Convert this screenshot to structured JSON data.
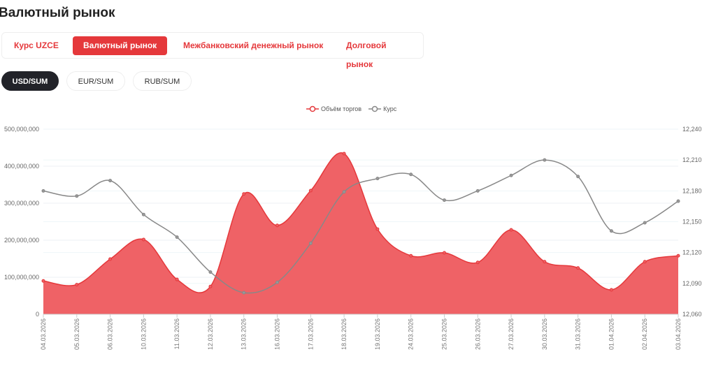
{
  "page_title": "Валютный рынок",
  "tabs": [
    {
      "label": "Курс UZCE",
      "active": false
    },
    {
      "label": "Валютный рынок",
      "active": true
    },
    {
      "label": "Межбанковский денежный рынок",
      "active": false
    },
    {
      "label": "Долговой рынок",
      "active": false
    }
  ],
  "pairs": [
    {
      "label": "USD/SUM",
      "active": true
    },
    {
      "label": "EUR/SUM",
      "active": false
    },
    {
      "label": "RUB/SUM",
      "active": false
    }
  ],
  "chart_data": {
    "type": "area+line",
    "legend_position": "top-center",
    "grid": true,
    "categories": [
      "04.03.2026",
      "05.03.2026",
      "06.03.2026",
      "10.03.2026",
      "11.03.2026",
      "12.03.2026",
      "13.03.2026",
      "16.03.2026",
      "17.03.2026",
      "18.03.2026",
      "19.03.2026",
      "24.03.2026",
      "25.03.2026",
      "26.03.2026",
      "27.03.2026",
      "30.03.2026",
      "31.03.2026",
      "01.04.2026",
      "02.04.2026",
      "03.04.2026"
    ],
    "left_axis": {
      "ylim": [
        0,
        500000000
      ],
      "ticks": [
        "0",
        "100,000,000",
        "200,000,000",
        "300,000,000",
        "400,000,000",
        "500,000,000"
      ]
    },
    "right_axis": {
      "ylim": [
        12060,
        12240
      ],
      "ticks": [
        "12,060",
        "12,090",
        "12,120",
        "12,150",
        "12,180",
        "12,210",
        "12,240"
      ]
    },
    "series": [
      {
        "name": "Объём торгов",
        "type": "area",
        "axis": "left",
        "color": "#e5383b",
        "fill": "#ef6266",
        "values": [
          90000000,
          80000000,
          149000000,
          202000000,
          94000000,
          75000000,
          325000000,
          240000000,
          334000000,
          434000000,
          230000000,
          158000000,
          166000000,
          140000000,
          228000000,
          142000000,
          125000000,
          66000000,
          142000000,
          158000000
        ]
      },
      {
        "name": "Курс",
        "type": "line",
        "axis": "right",
        "color": "#888888",
        "values": [
          12180,
          12175,
          12190,
          12157,
          12135,
          12101,
          12081,
          12091,
          12129,
          12179,
          12192,
          12196,
          12171,
          12180,
          12195,
          12210,
          12194,
          12141,
          12149,
          12170
        ]
      }
    ]
  }
}
